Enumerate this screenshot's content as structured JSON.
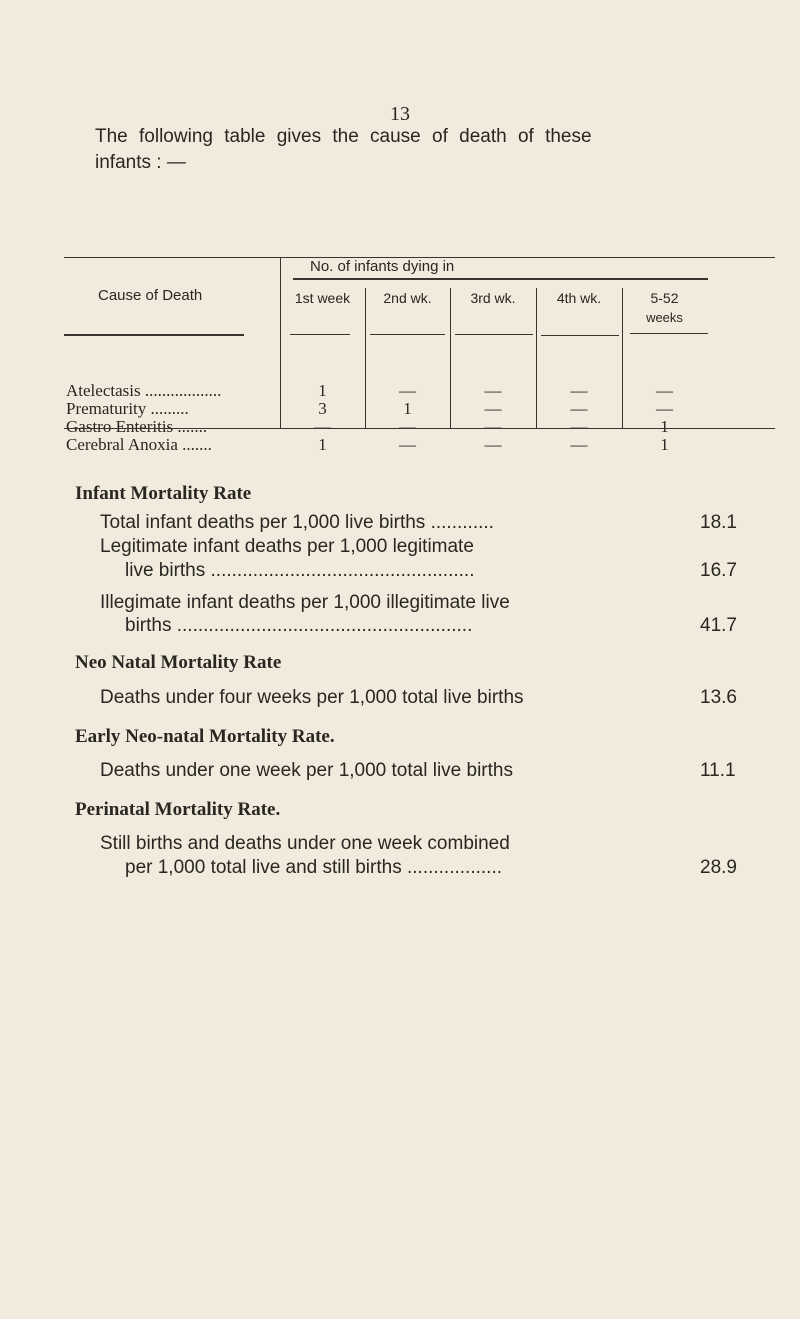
{
  "page_number": "13",
  "intro": {
    "line1": "The following table gives the cause of death of these",
    "line2": "infants : —"
  },
  "table": {
    "cause_header": "Cause of Death",
    "group_header": "No. of infants dying in",
    "columns": [
      "1st week",
      "2nd wk.",
      "3rd wk.",
      "4th wk.",
      "5-52 weeks"
    ],
    "col5_line1": "5-52",
    "col5_line2": "weeks",
    "rows": [
      {
        "cause": "Atelectasis ..................",
        "values": [
          "1",
          "—",
          "—",
          "—",
          "—"
        ]
      },
      {
        "cause": "Prematurity  .........",
        "values": [
          "3",
          "1",
          "—",
          "—",
          "—"
        ]
      },
      {
        "cause": "Gastro Enteritis .......",
        "values": [
          "—",
          "—",
          "—",
          "—",
          "1"
        ]
      },
      {
        "cause": "Cerebral Anoxia .......",
        "values": [
          "1",
          "—",
          "—",
          "—",
          "1"
        ]
      }
    ]
  },
  "infant": {
    "heading": "Infant Mortality Rate",
    "l1": "Total infant deaths per 1,000 live births ............",
    "v1": "18.1",
    "l2a": "Legitimate infant deaths per 1,000 legitimate",
    "l2b": "live births  ..................................................",
    "v2": "16.7",
    "l3a": "Illegimate infant deaths per 1,000 illegitimate live",
    "l3b": "births  ........................................................",
    "v3": "41.7"
  },
  "neo": {
    "heading": "Neo Natal Mortality Rate",
    "l1": "Deaths under four weeks per 1,000 total live births",
    "v1": "13.6"
  },
  "early": {
    "heading": "Early Neo-natal Mortality Rate.",
    "l1": "Deaths under one week per 1,000 total live births",
    "v1": "11.1"
  },
  "perinatal": {
    "heading": "Perinatal Mortality Rate.",
    "l1a": "Still births and deaths under one week combined",
    "l1b": "per 1,000 total live and still births ..................",
    "v1": "28.9"
  }
}
